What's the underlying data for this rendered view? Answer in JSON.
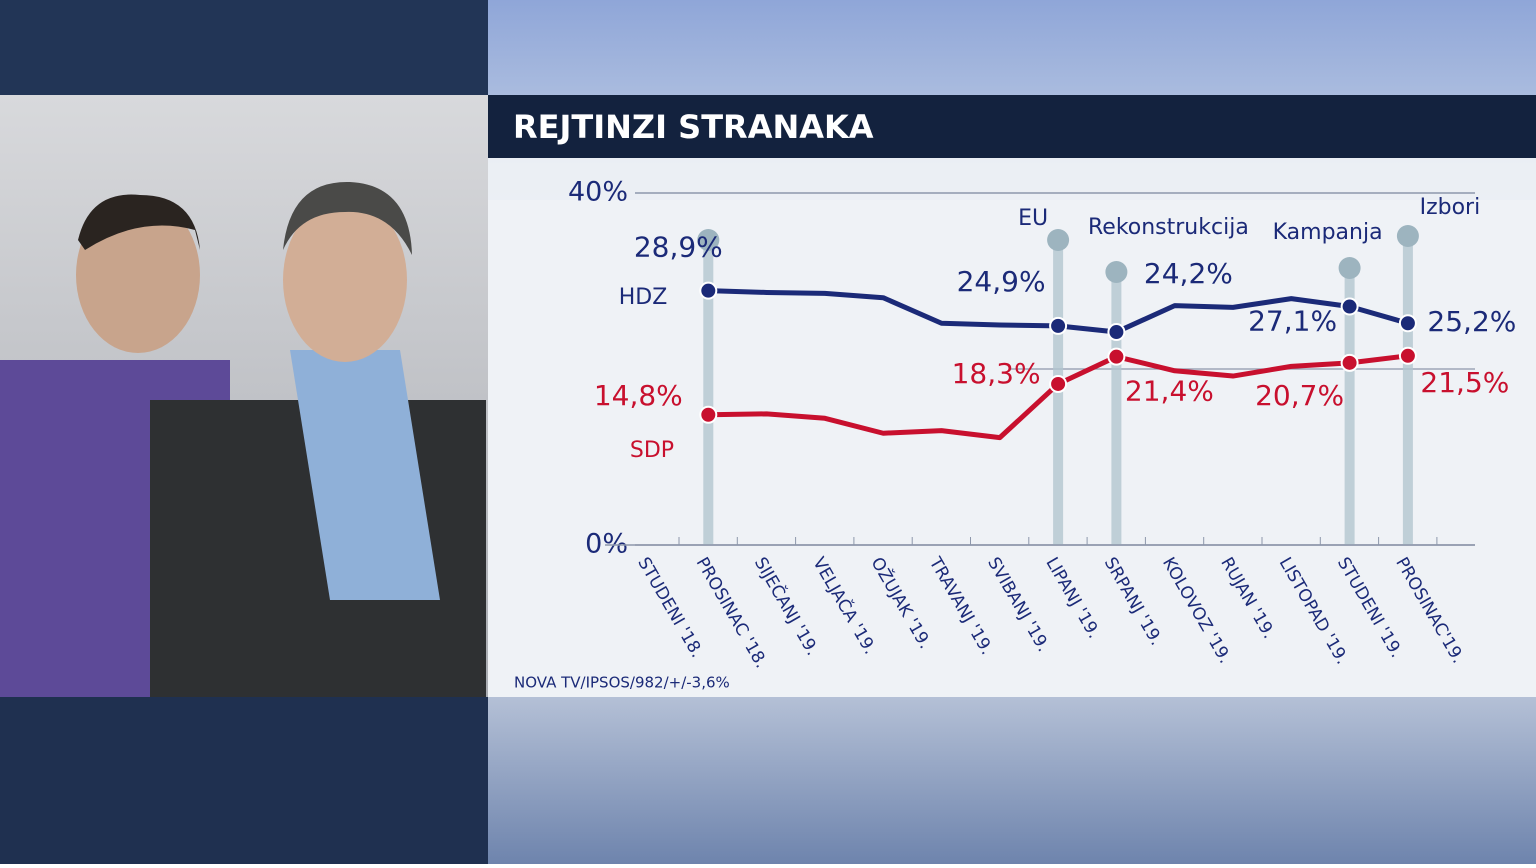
{
  "title": "REJTINZI STRANAKA",
  "source": "NOVA TV/IPSOS/982/+/-3,6%",
  "chart_data": {
    "type": "line",
    "categories": [
      "STUDENI '18.",
      "PROSINAC '18.",
      "SIJEČANJ '19.",
      "VELJAČA '19.",
      "OŽUJAK '19.",
      "TRAVANJ '19.",
      "SVIBANJ '19.",
      "LIPANJ '19.",
      "SRPANJ '19.",
      "KOLOVOZ '19.",
      "RUJAN '19.",
      "LISTOPAD '19.",
      "STUDENI '19.",
      "PROSINAC'19."
    ],
    "series": [
      {
        "name": "HDZ",
        "color": "#1b2a78",
        "values": [
          null,
          28.9,
          28.7,
          28.6,
          28.1,
          25.2,
          25.0,
          24.9,
          24.2,
          27.2,
          27.0,
          28.0,
          27.1,
          25.2
        ],
        "value_labels": [
          null,
          "28,9%",
          null,
          null,
          null,
          null,
          null,
          "24,9%",
          "24,2%",
          null,
          null,
          null,
          "27,1%",
          "25,2%"
        ]
      },
      {
        "name": "SDP",
        "color": "#c8102e",
        "values": [
          null,
          14.8,
          14.9,
          14.4,
          12.7,
          13.0,
          12.2,
          18.3,
          21.4,
          19.8,
          19.2,
          20.3,
          20.7,
          21.5
        ],
        "value_labels": [
          null,
          "14,8%",
          null,
          null,
          null,
          null,
          null,
          "18,3%",
          "21,4%",
          null,
          null,
          null,
          "20,7%",
          "21,5%"
        ]
      }
    ],
    "ylim": [
      0,
      40
    ],
    "yticks": [
      {
        "value": 0,
        "label": "0%"
      },
      {
        "value": 40,
        "label": "40%"
      }
    ],
    "ygrid": [
      20
    ],
    "events": [
      {
        "category": "PROSINAC '18.",
        "label": null
      },
      {
        "category": "LIPANJ '19.",
        "label": "EU"
      },
      {
        "category": "SRPANJ '19.",
        "label": "Rekonstrukcija"
      },
      {
        "category": "STUDENI '19.",
        "label": "Kampanja"
      },
      {
        "category": "PROSINAC'19.",
        "label": "Izbori"
      }
    ]
  }
}
